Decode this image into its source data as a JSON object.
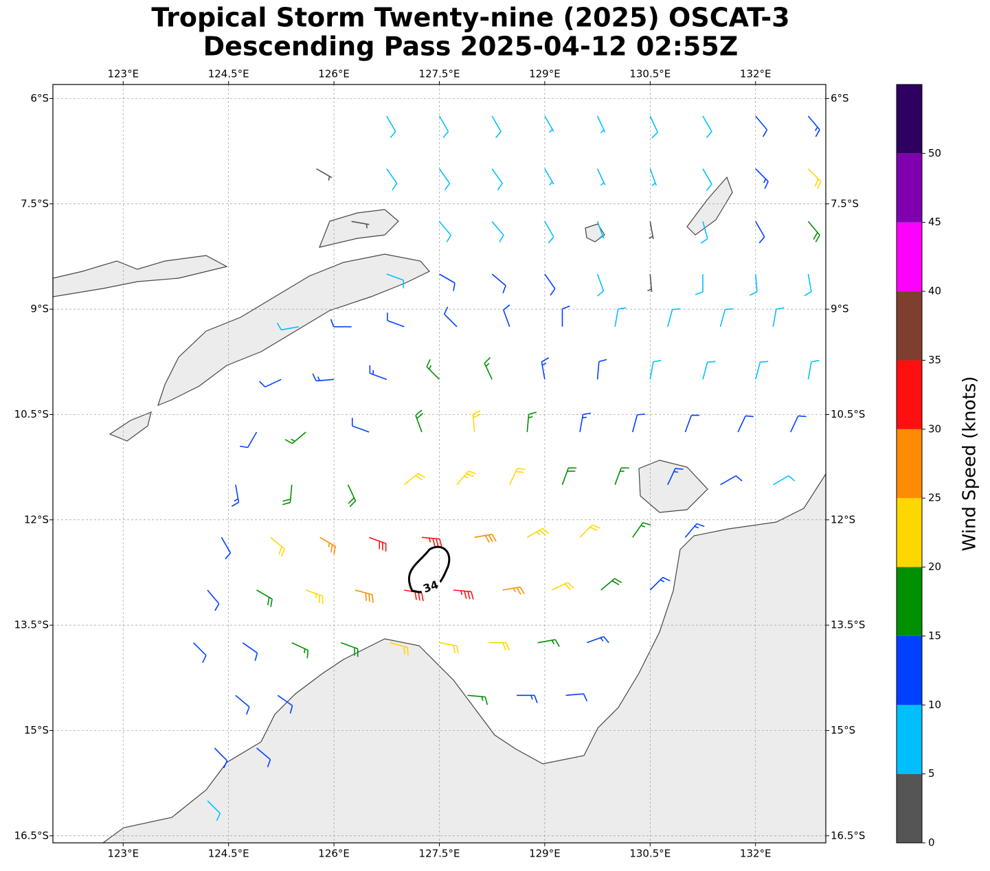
{
  "chart_data": {
    "type": "wind-barb-map",
    "title": "Tropical Storm Twenty-nine (2025) OSCAT-3",
    "subtitle": "Descending Pass 2025-04-12 02:55Z",
    "xlim": [
      122,
      133
    ],
    "ylim": [
      -16.6,
      -5.8
    ],
    "xticks": [
      {
        "value": 123,
        "label": "123°E"
      },
      {
        "value": 124.5,
        "label": "124.5°E"
      },
      {
        "value": 126,
        "label": "126°E"
      },
      {
        "value": 127.5,
        "label": "127.5°E"
      },
      {
        "value": 129,
        "label": "129°E"
      },
      {
        "value": 130.5,
        "label": "130.5°E"
      },
      {
        "value": 132,
        "label": "132°E"
      }
    ],
    "yticks": [
      {
        "value": -6,
        "label": "6°S"
      },
      {
        "value": -7.5,
        "label": "7.5°S"
      },
      {
        "value": -9,
        "label": "9°S"
      },
      {
        "value": -10.5,
        "label": "10.5°S"
      },
      {
        "value": -12,
        "label": "12°S"
      },
      {
        "value": -13.5,
        "label": "13.5°S"
      },
      {
        "value": -15,
        "label": "15°S"
      },
      {
        "value": -16.5,
        "label": "16.5°S"
      }
    ],
    "grid": true,
    "contour": {
      "level": 34
    },
    "colorbar": {
      "label": "Wind Speed (knots)",
      "lim": [
        0,
        55
      ],
      "ticks": [
        0,
        5,
        10,
        15,
        20,
        25,
        30,
        35,
        40,
        45,
        50
      ],
      "colors": [
        "#555555",
        "#00bfff",
        "#0040ff",
        "#009000",
        "#ffd700",
        "#ff8c00",
        "#ff1010",
        "#7f3f2f",
        "#ff00ff",
        "#8000b0",
        "#300060"
      ]
    },
    "barbs": {
      "lon": [
        126.75,
        127.5,
        128.25,
        129,
        129.75,
        130.5,
        131.25,
        132,
        132.75,
        125.75,
        126.75,
        127.5,
        128.25,
        129,
        129.75,
        130.5,
        131.25,
        132,
        132.75,
        126.25,
        127.5,
        128.25,
        129,
        129.75,
        130.5,
        131.25,
        132,
        132.75,
        126.75,
        127.5,
        128.25,
        129,
        129.75,
        130.5,
        131.25,
        132,
        132.75,
        125.5,
        126.25,
        127,
        127.75,
        128.5,
        129.25,
        130,
        130.75,
        131.5,
        132.25,
        125.25,
        126,
        126.75,
        127.5,
        128.25,
        129,
        129.75,
        130.5,
        131.25,
        132,
        132.75,
        124.9,
        125.6,
        126.5,
        127.25,
        128,
        128.75,
        129.5,
        130.25,
        131,
        131.75,
        132.5,
        124.6,
        125.4,
        126.2,
        127,
        127.75,
        128.5,
        129.25,
        130,
        130.75,
        131.5,
        132.25,
        124.4,
        125.1,
        125.8,
        126.5,
        127.25,
        128,
        128.75,
        129.5,
        130.25,
        131,
        124.2,
        124.9,
        125.6,
        126.3,
        127,
        127.7,
        128.4,
        129.1,
        129.8,
        130.5,
        124,
        124.7,
        125.4,
        126.1,
        126.8,
        127.5,
        128.2,
        128.9,
        129.6,
        124.6,
        125.2,
        127.9,
        128.6,
        129.3,
        124.3,
        124.9,
        124.2
      ],
      "lat": [
        -6.25,
        -6.25,
        -6.25,
        -6.25,
        -6.25,
        -6.25,
        -6.25,
        -6.25,
        -6.25,
        -7,
        -7,
        -7,
        -7,
        -7,
        -7,
        -7,
        -7,
        -7,
        -7,
        -7.75,
        -7.75,
        -7.75,
        -7.75,
        -7.75,
        -7.75,
        -7.75,
        -7.75,
        -7.75,
        -8.5,
        -8.5,
        -8.5,
        -8.5,
        -8.5,
        -8.5,
        -8.5,
        -8.5,
        -8.5,
        -9.25,
        -9.25,
        -9.25,
        -9.25,
        -9.25,
        -9.25,
        -9.25,
        -9.25,
        -9.25,
        -9.25,
        -10,
        -10,
        -10,
        -10,
        -10,
        -10,
        -10,
        -10,
        -10,
        -10,
        -10,
        -10.75,
        -10.75,
        -10.75,
        -10.75,
        -10.75,
        -10.75,
        -10.75,
        -10.75,
        -10.75,
        -10.75,
        -10.75,
        -11.5,
        -11.5,
        -11.5,
        -11.5,
        -11.5,
        -11.5,
        -11.5,
        -11.5,
        -11.5,
        -11.5,
        -11.5,
        -12.25,
        -12.25,
        -12.25,
        -12.25,
        -12.25,
        -12.25,
        -12.25,
        -12.25,
        -12.25,
        -12.25,
        -13,
        -13,
        -13,
        -13,
        -13,
        -13,
        -13,
        -13,
        -13,
        -13,
        -13.75,
        -13.75,
        -13.75,
        -13.75,
        -13.75,
        -13.75,
        -13.75,
        -13.75,
        -13.75,
        -14.5,
        -14.5,
        -14.5,
        -14.5,
        -14.5,
        -15.25,
        -15.25,
        -16
      ],
      "speed": [
        8,
        8,
        8,
        7,
        7,
        8,
        9,
        12,
        13,
        3,
        8,
        8,
        8,
        7,
        7,
        7,
        9,
        13,
        20,
        3,
        8,
        9,
        8,
        7,
        4,
        8,
        12,
        18,
        8,
        10,
        12,
        10,
        8,
        4,
        8,
        8,
        8,
        8,
        10,
        12,
        12,
        12,
        10,
        8,
        8,
        8,
        8,
        12,
        14,
        14,
        16,
        15,
        13,
        11,
        9,
        8,
        8,
        8,
        12,
        15,
        10,
        18,
        20,
        17,
        14,
        12,
        11,
        11,
        10,
        14,
        18,
        18,
        22,
        24,
        22,
        19,
        16,
        13,
        12,
        9,
        10,
        20,
        27,
        32,
        34,
        28,
        24,
        20,
        17,
        13,
        10,
        18,
        24,
        28,
        30,
        34,
        25,
        22,
        18,
        14,
        10,
        12,
        16,
        18,
        22,
        22,
        20,
        15,
        13,
        12,
        12,
        16,
        13,
        12,
        10,
        12,
        8
      ],
      "direction": [
        150,
        150,
        150,
        150,
        155,
        155,
        150,
        140,
        140,
        120,
        145,
        145,
        145,
        150,
        155,
        160,
        150,
        135,
        135,
        100,
        140,
        140,
        150,
        160,
        170,
        165,
        150,
        140,
        110,
        120,
        130,
        145,
        160,
        175,
        180,
        175,
        170,
        260,
        270,
        290,
        315,
        340,
        0,
        10,
        15,
        15,
        10,
        245,
        265,
        290,
        315,
        335,
        350,
        5,
        10,
        15,
        15,
        10,
        210,
        230,
        290,
        340,
        355,
        5,
        10,
        15,
        20,
        25,
        25,
        170,
        185,
        155,
        51,
        40,
        25,
        20,
        20,
        25,
        60,
        60,
        150,
        130,
        120,
        110,
        95,
        80,
        60,
        45,
        35,
        40,
        140,
        120,
        110,
        105,
        100,
        95,
        80,
        65,
        50,
        45,
        135,
        125,
        115,
        110,
        105,
        100,
        90,
        80,
        70,
        130,
        125,
        95,
        90,
        85,
        135,
        130,
        135
      ]
    }
  }
}
